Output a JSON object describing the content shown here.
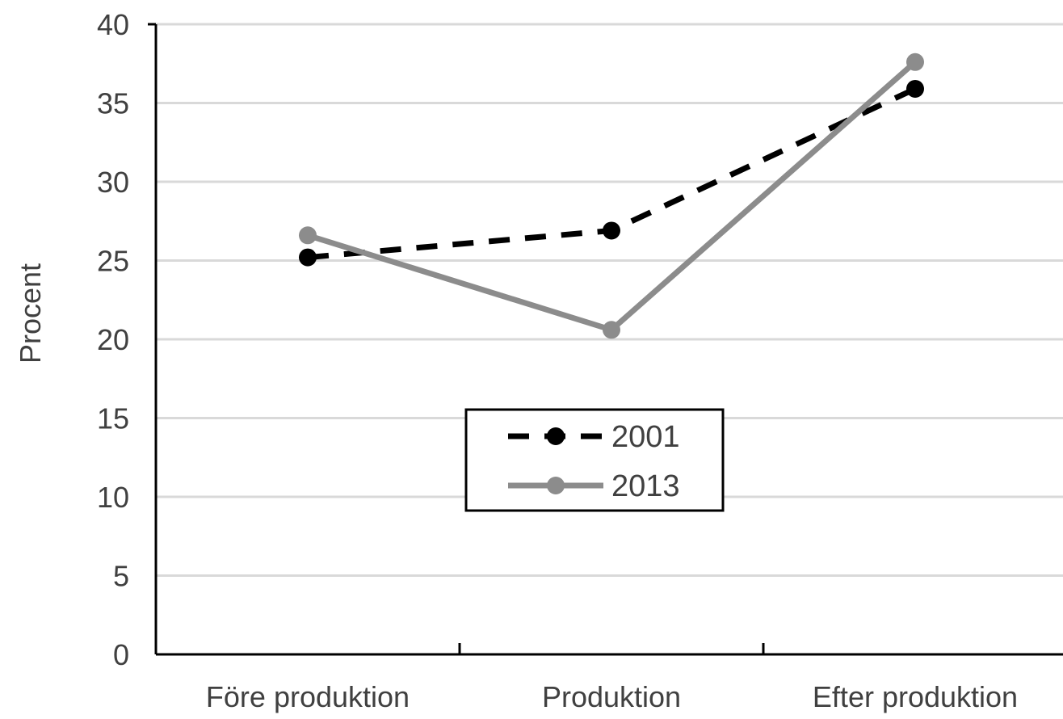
{
  "chart_data": {
    "type": "line",
    "title": "",
    "xlabel": "",
    "ylabel": "Procent",
    "categories": [
      "Före produktion",
      "Produktion",
      "Efter produktion"
    ],
    "ylim": [
      0,
      40
    ],
    "yticks": [
      0,
      5,
      10,
      15,
      20,
      25,
      30,
      35,
      40
    ],
    "grid": true,
    "legend_position": "center",
    "series": [
      {
        "name": "2001",
        "values": [
          25.2,
          26.9,
          35.9
        ],
        "color": "#000000",
        "line_style": "dashed",
        "marker": "circle"
      },
      {
        "name": "2013",
        "values": [
          26.6,
          20.6,
          37.6
        ],
        "color": "#8c8c8c",
        "line_style": "solid",
        "marker": "circle"
      }
    ]
  }
}
